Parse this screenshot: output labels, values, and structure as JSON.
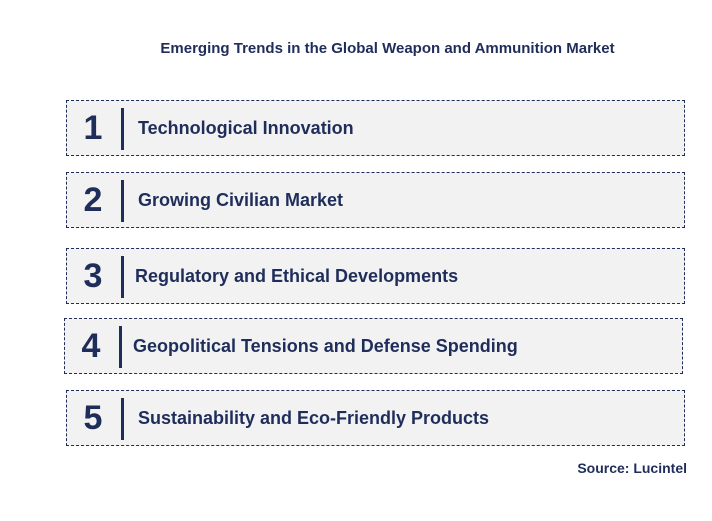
{
  "title": "Emerging Trends in the Global Weapon and Ammunition Market",
  "items": [
    {
      "number": "1",
      "label": "Technological Innovation"
    },
    {
      "number": "2",
      "label": "Growing Civilian Market"
    },
    {
      "number": "3",
      "label": "Regulatory and Ethical Developments"
    },
    {
      "number": "4",
      "label": "Geopolitical Tensions and Defense Spending"
    },
    {
      "number": "5",
      "label": "Sustainability and Eco-Friendly Products"
    }
  ],
  "source": "Source: Lucintel",
  "colors": {
    "text": "#1f2d5a",
    "box_background": "#f2f2f2",
    "border": "#1f2d5a"
  }
}
